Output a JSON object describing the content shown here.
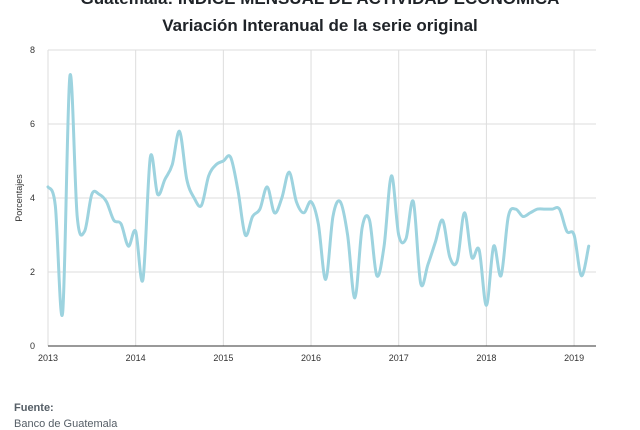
{
  "titles": {
    "line1": "Guatemala: ÍNDICE MENSUAL DE ACTIVIDAD ECONÓMICA",
    "line2": "Variación Interanual de la serie original"
  },
  "footer": {
    "label": "Fuente:",
    "source": "Banco de Guatemala"
  },
  "chart_data": {
    "type": "line",
    "title": "Variación Interanual de la serie original",
    "xlabel": "",
    "ylabel": "Porcentajes",
    "ylim": [
      0,
      8
    ],
    "yticks": [
      0,
      2,
      4,
      6,
      8
    ],
    "xlim": [
      2013.0,
      2019.25
    ],
    "xticks": [
      "2013",
      "2014",
      "2015",
      "2016",
      "2017",
      "2018",
      "2019"
    ],
    "grid": true,
    "legend": "none",
    "colors": {
      "line": "#9dd3df",
      "grid": "#dddddd",
      "axis": "#333333"
    },
    "series": [
      {
        "name": "",
        "x": [
          2013.0,
          2013.083,
          2013.167,
          2013.25,
          2013.333,
          2013.417,
          2013.5,
          2013.583,
          2013.667,
          2013.75,
          2013.833,
          2013.917,
          2014.0,
          2014.083,
          2014.167,
          2014.25,
          2014.333,
          2014.417,
          2014.5,
          2014.583,
          2014.667,
          2014.75,
          2014.833,
          2014.917,
          2015.0,
          2015.083,
          2015.167,
          2015.25,
          2015.333,
          2015.417,
          2015.5,
          2015.583,
          2015.667,
          2015.75,
          2015.833,
          2015.917,
          2016.0,
          2016.083,
          2016.167,
          2016.25,
          2016.333,
          2016.417,
          2016.5,
          2016.583,
          2016.667,
          2016.75,
          2016.833,
          2016.917,
          2017.0,
          2017.083,
          2017.167,
          2017.25,
          2017.333,
          2017.417,
          2017.5,
          2017.583,
          2017.667,
          2017.75,
          2017.833,
          2017.917,
          2018.0,
          2018.083,
          2018.167,
          2018.25,
          2018.333,
          2018.417,
          2018.5,
          2018.583,
          2018.667,
          2018.75,
          2018.833,
          2018.917,
          2019.0,
          2019.083,
          2019.167
        ],
        "values": [
          4.3,
          3.8,
          0.9,
          7.3,
          3.5,
          3.1,
          4.1,
          4.1,
          3.9,
          3.4,
          3.3,
          2.7,
          3.1,
          1.8,
          5.1,
          4.1,
          4.5,
          4.9,
          5.8,
          4.5,
          4.0,
          3.8,
          4.6,
          4.9,
          5.0,
          5.1,
          4.2,
          3.0,
          3.5,
          3.7,
          4.3,
          3.6,
          4.0,
          4.7,
          3.9,
          3.6,
          3.9,
          3.3,
          1.8,
          3.5,
          3.9,
          3.0,
          1.3,
          3.2,
          3.4,
          1.9,
          2.7,
          4.6,
          3.0,
          2.9,
          3.9,
          1.7,
          2.2,
          2.8,
          3.4,
          2.4,
          2.3,
          3.6,
          2.4,
          2.6,
          1.1,
          2.7,
          1.9,
          3.5,
          3.7,
          3.5,
          3.6,
          3.7,
          3.7,
          3.7,
          3.7,
          3.1,
          3.0,
          1.9,
          2.7
        ]
      }
    ]
  }
}
